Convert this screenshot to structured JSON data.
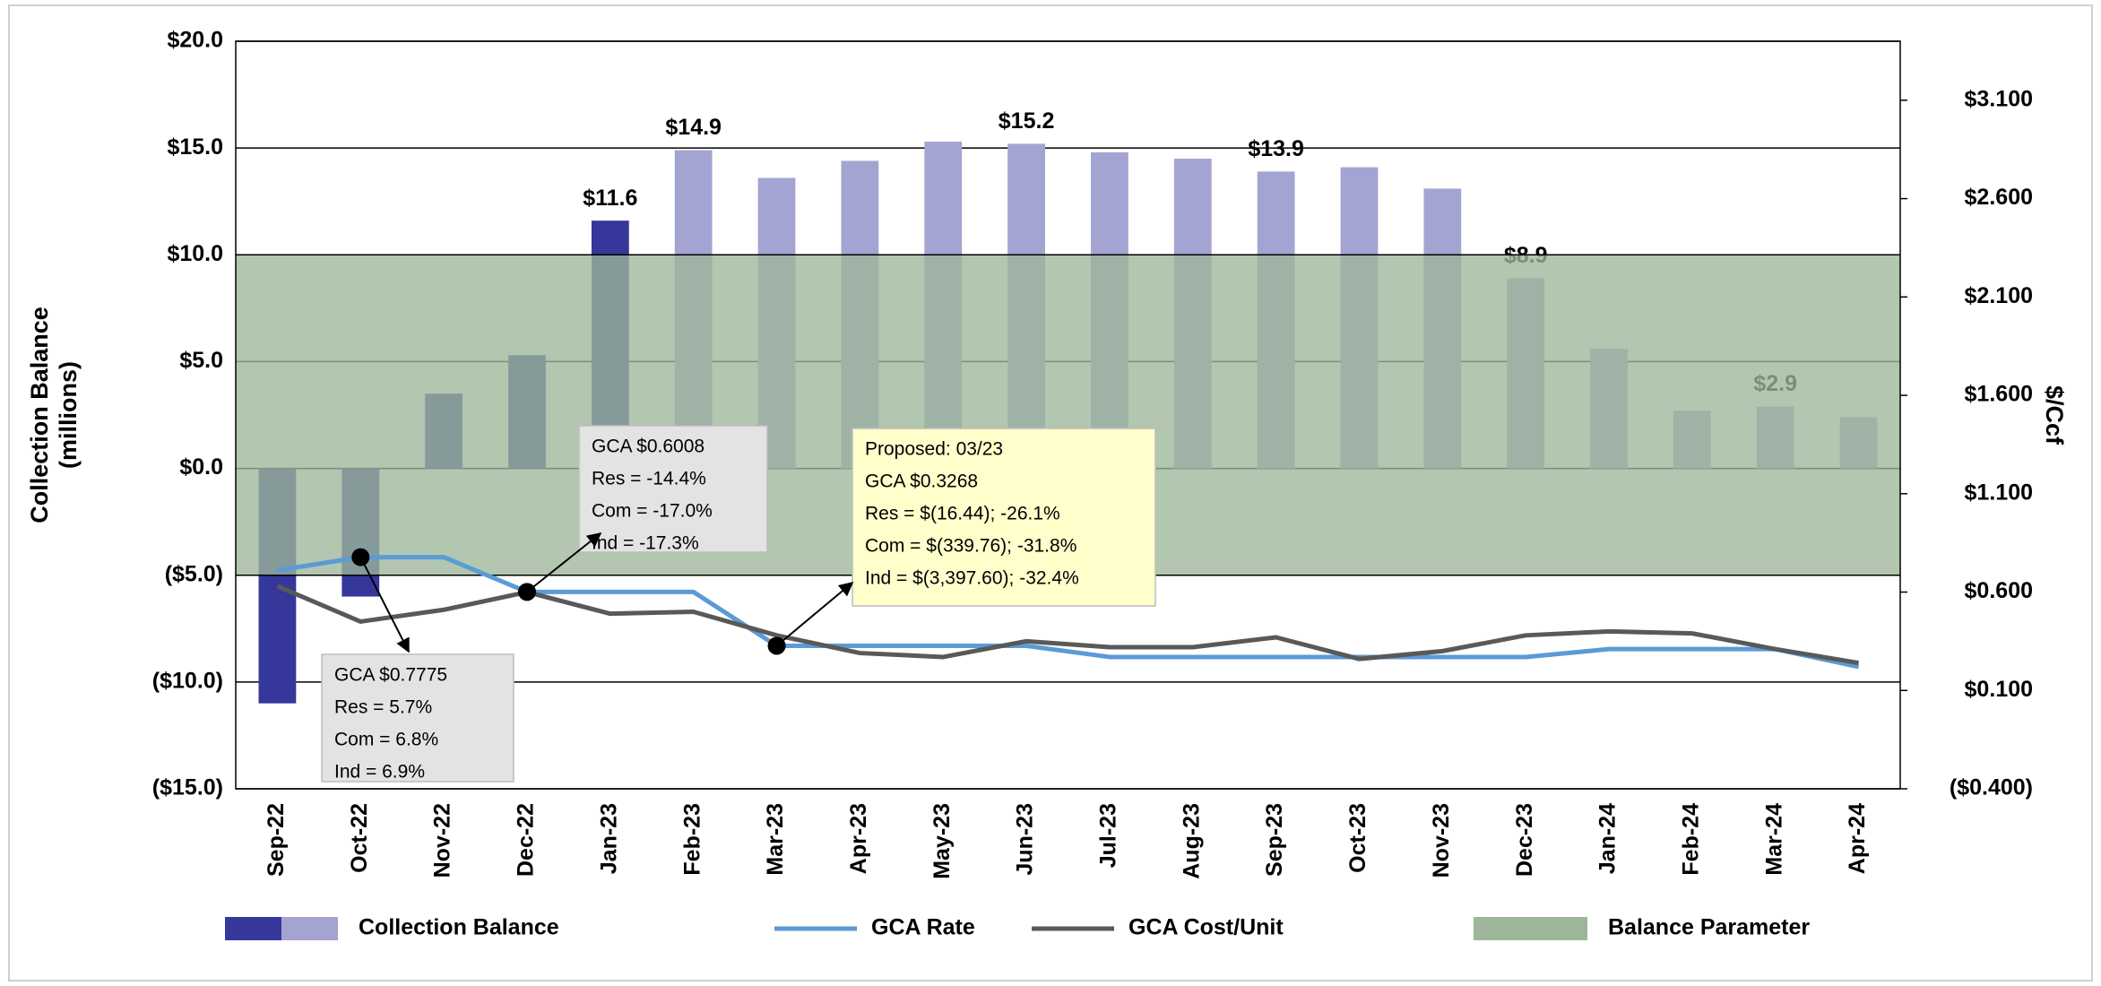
{
  "chart_data": {
    "type": "combo",
    "categories": [
      "Sep-22",
      "Oct-22",
      "Nov-22",
      "Dec-22",
      "Jan-23",
      "Feb-23",
      "Mar-23",
      "Apr-23",
      "May-23",
      "Jun-23",
      "Jul-23",
      "Aug-23",
      "Sep-23",
      "Oct-23",
      "Nov-23",
      "Dec-23",
      "Jan-24",
      "Feb-24",
      "Mar-24",
      "Apr-24"
    ],
    "y_label": [
      "Collection Balance",
      "(millions)"
    ],
    "y2_label": "$/Ccf",
    "ylim": [
      -15,
      20
    ],
    "yticks": [
      {
        "value": -15,
        "label": "($15.0)"
      },
      {
        "value": -10,
        "label": "($10.0)"
      },
      {
        "value": -5,
        "label": "($5.0)"
      },
      {
        "value": 0,
        "label": "$0.0"
      },
      {
        "value": 5,
        "label": "$5.0"
      },
      {
        "value": 10,
        "label": "$10.0"
      },
      {
        "value": 15,
        "label": "$15.0"
      },
      {
        "value": 20,
        "label": "$20.0"
      }
    ],
    "y2lim": [
      -0.4,
      3.4
    ],
    "y2ticks": [
      {
        "value": -0.4,
        "label": "($0.400)"
      },
      {
        "value": 0.1,
        "label": "$0.100"
      },
      {
        "value": 0.6,
        "label": "$0.600"
      },
      {
        "value": 1.1,
        "label": "$1.100"
      },
      {
        "value": 1.6,
        "label": "$1.600"
      },
      {
        "value": 2.1,
        "label": "$2.100"
      },
      {
        "value": 2.6,
        "label": "$2.600"
      },
      {
        "value": 3.1,
        "label": "$3.100"
      }
    ],
    "grid": true,
    "band": {
      "name": "Balance Parameter",
      "range": [
        -5,
        10
      ],
      "color": "#9db69a"
    },
    "bars": {
      "name": "Collection Balance",
      "legend_colors": [
        "#35379a",
        "#a4a4d2"
      ],
      "colors": [
        "#35379a",
        "#35379a",
        "#35379a",
        "#35379a",
        "#35379a",
        "#a4a4d2",
        "#a4a4d2",
        "#a4a4d2",
        "#a4a4d2",
        "#a4a4d2",
        "#a4a4d2",
        "#a4a4d2",
        "#a4a4d2",
        "#a4a4d2",
        "#a4a4d2",
        "#a4a4d2",
        "#a4a4d2",
        "#a4a4d2",
        "#a4a4d2",
        "#a4a4d2"
      ],
      "values": [
        -11.0,
        -6.0,
        3.5,
        5.3,
        11.6,
        14.9,
        13.6,
        14.4,
        15.3,
        15.2,
        14.8,
        14.5,
        13.9,
        14.1,
        13.1,
        8.9,
        5.6,
        2.7,
        2.9,
        2.4
      ],
      "value_labels": [
        null,
        null,
        null,
        null,
        "$11.6",
        "$14.9",
        null,
        null,
        null,
        "$15.2",
        null,
        null,
        "$13.9",
        null,
        null,
        "$8.9",
        null,
        null,
        "$2.9",
        null
      ]
    },
    "series": [
      {
        "name": "GCA Rate",
        "color": "#5b9bd5",
        "axis": "y2",
        "values": [
          0.71,
          0.7775,
          0.7775,
          0.6008,
          0.6008,
          0.6008,
          0.3268,
          0.3268,
          0.3268,
          0.3268,
          0.27,
          0.27,
          0.27,
          0.27,
          0.27,
          0.27,
          0.31,
          0.31,
          0.31,
          0.22
        ]
      },
      {
        "name": "GCA Cost/Unit",
        "color": "#595959",
        "axis": "y2",
        "values": [
          0.63,
          0.45,
          0.51,
          0.6,
          0.49,
          0.5,
          0.38,
          0.29,
          0.27,
          0.35,
          0.32,
          0.32,
          0.37,
          0.26,
          0.3,
          0.38,
          0.4,
          0.39,
          0.31,
          0.24
        ]
      }
    ],
    "annotations": [
      {
        "lines": [
          "GCA $0.6008",
          "Res = -14.4%",
          "Com = -17.0%",
          "Ind = -17.3%"
        ]
      },
      {
        "lines": [
          "GCA $0.7775",
          "Res = 5.7%",
          "Com = 6.8%",
          "Ind = 6.9%"
        ]
      },
      {
        "lines": [
          "Proposed: 03/23",
          "GCA $0.3268",
          "Res = $(16.44);  -26.1%",
          "Com = $(339.76);  -31.8%",
          "Ind = $(3,397.60);  -32.4%"
        ]
      }
    ]
  }
}
